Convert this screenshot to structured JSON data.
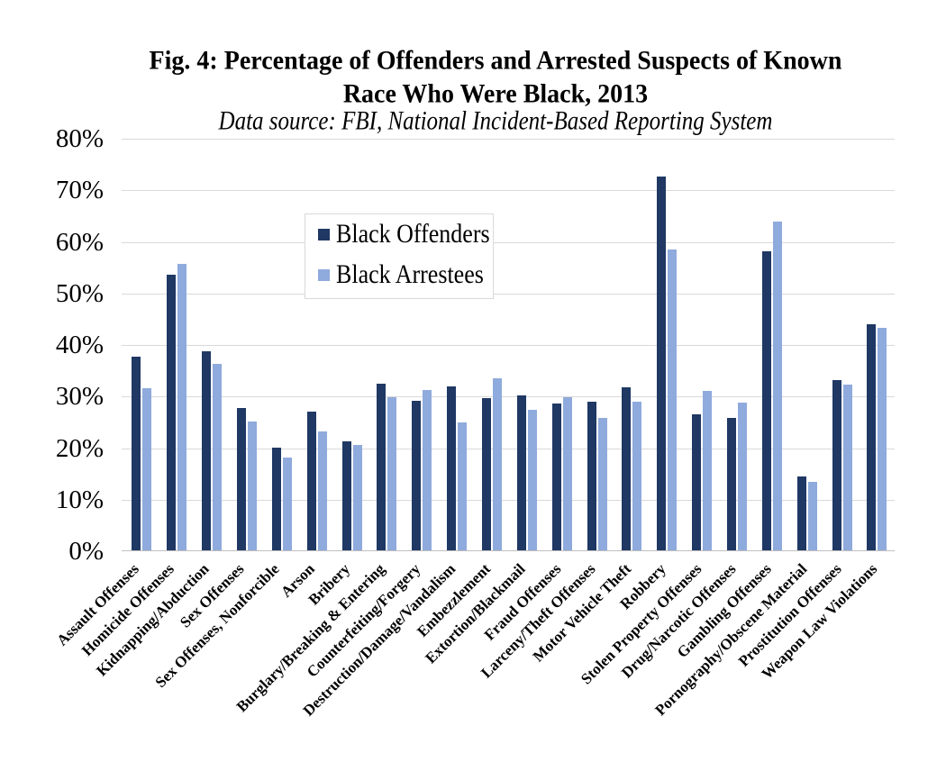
{
  "chart_data": {
    "type": "bar",
    "title_line1": "Fig. 4: Percentage of Offenders and Arrested Suspects of Known",
    "title_line2": "Race Who Were Black, 2013",
    "subtitle": "Data source: FBI, National Incident-Based Reporting System",
    "categories": [
      "Assault Offenses",
      "Homicide Offenses",
      "Kidnapping/Abduction",
      "Sex Offenses",
      "Sex Offenses, Nonforcible",
      "Arson",
      "Bribery",
      "Burglary/Breaking & Entering",
      "Counterfeiting/Forgery",
      "Destruction/Damage/Vandalism",
      "Embezzlement",
      "Extortion/Blackmail",
      "Fraud Offenses",
      "Larceny/Theft Offenses",
      "Motor Vehicle Theft",
      "Robbery",
      "Stolen Property Offenses",
      "Drug/Narcotic Offenses",
      "Gambling Offenses",
      "Pornography/Obscene Material",
      "Prostitution Offenses",
      "Weapon Law Violations"
    ],
    "series": [
      {
        "name": "Black Offenders",
        "color": "#1f3864",
        "values": [
          37.7,
          53.6,
          38.8,
          27.7,
          20.1,
          27.1,
          21.3,
          32.5,
          29.1,
          32.0,
          29.7,
          30.3,
          28.7,
          29.0,
          31.8,
          72.7,
          26.5,
          25.8,
          58.1,
          14.5,
          33.2,
          44.0
        ]
      },
      {
        "name": "Black Arrestees",
        "color": "#8faadc",
        "values": [
          31.6,
          55.7,
          36.4,
          25.1,
          18.1,
          23.3,
          20.7,
          29.9,
          31.2,
          24.9,
          33.6,
          27.5,
          29.9,
          25.9,
          29.0,
          58.6,
          31.1,
          28.8,
          64.0,
          13.4,
          32.3,
          43.3
        ]
      }
    ],
    "ylim": [
      0,
      80
    ],
    "yticks": [
      "80%",
      "70%",
      "60%",
      "50%",
      "40%",
      "30%",
      "20%",
      "10%",
      "0%"
    ],
    "grid": true,
    "legend_position": "upper-left-inside"
  }
}
